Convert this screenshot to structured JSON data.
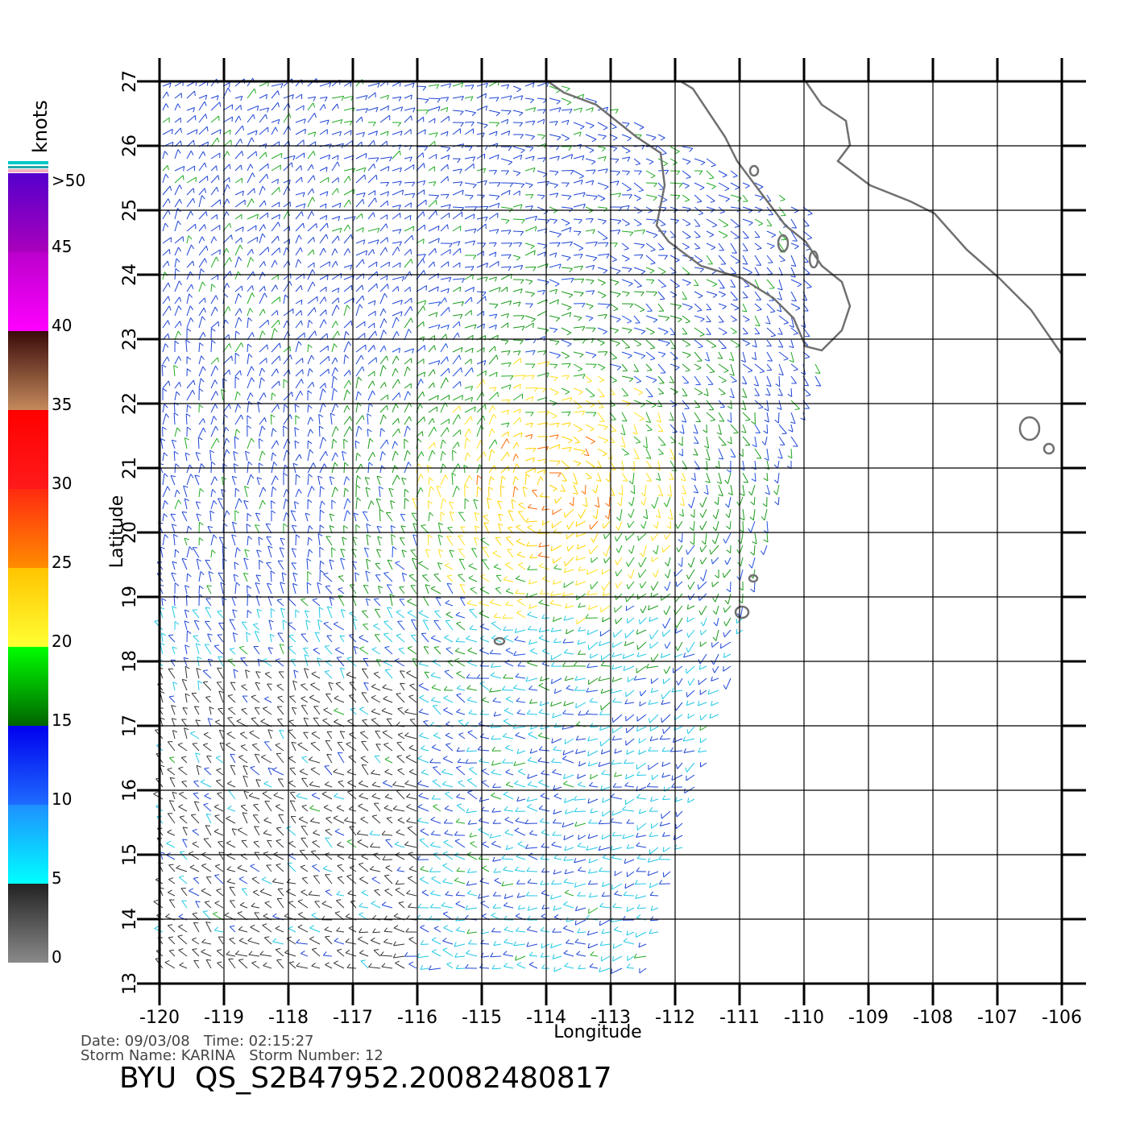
{
  "colorbar": {
    "unit": "knots",
    "lim": [
      0,
      50
    ],
    "ticks": [
      0,
      5,
      10,
      15,
      20,
      25,
      30,
      35,
      40,
      45,
      {
        "value": 50,
        "label": ">50"
      }
    ],
    "colors": [
      [
        "#8a8a8a",
        "#222222"
      ],
      [
        "#00ffff",
        "#1e90ff"
      ],
      [
        "#1e6bff",
        "#0000ee"
      ],
      [
        "#006400",
        "#00ff00"
      ],
      [
        "#ffff33",
        "#ffc400"
      ],
      [
        "#ff8c00",
        "#ff2a10"
      ],
      [
        "#ff1a1a",
        "#ff0000"
      ],
      [
        "#c48a5c",
        "#3a0a0a"
      ],
      [
        "#ff00ff",
        "#bb00cc"
      ],
      [
        "#aa00bb",
        "#5500cc"
      ]
    ]
  },
  "map": {
    "xlabel": "Longitude",
    "ylabel": "Latitude",
    "xlim": [
      -120,
      -106
    ],
    "ylim": [
      13,
      27
    ],
    "xticks": [
      -120,
      -119,
      -118,
      -117,
      -116,
      -115,
      -114,
      -113,
      -112,
      -111,
      -110,
      -109,
      -108,
      -107,
      -106
    ],
    "yticks": [
      13,
      14,
      15,
      16,
      17,
      18,
      19,
      20,
      21,
      22,
      23,
      24,
      25,
      26,
      27
    ],
    "grid": true
  },
  "footer": {
    "date_line": "Date: 09/03/08   Time: 02:15:27",
    "storm_line": "Storm Name: KARINA   Storm Number: 12",
    "title": "BYU  QS_S2B47952.20082480817"
  }
}
